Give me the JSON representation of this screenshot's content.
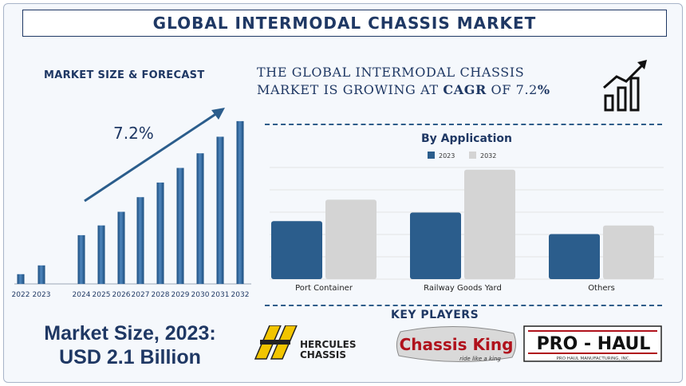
{
  "title": "GLOBAL INTERMODAL CHASSIS MARKET",
  "left_panel": {
    "subtitle": "MARKET SIZE & FORECAST",
    "market_size_line1": "Market Size, 2023:",
    "market_size_line2": "USD 2.1 Billion"
  },
  "headline": {
    "line1": "THE GLOBAL INTERMODAL CHASSIS",
    "line2_prefix": "MARKET IS GROWING AT ",
    "line2_bold": "CAGR",
    "line2_mid": " OF  7.2",
    "line2_suffix": "%"
  },
  "key_players": {
    "heading": "KEY PLAYERS",
    "hercules_line1": "HERCULES",
    "hercules_line2": "CHASSIS",
    "chassis_king": "Chassis King",
    "chassis_king_tag": "ride like a king",
    "prohaul": "PRO - HAUL",
    "prohaul_sub": "PRO HAUL MANUFACTURING, INC."
  },
  "colors": {
    "navy": "#1f3864",
    "bar_blue": "#2b5d8c",
    "bar_grey": "#d4d4d4"
  },
  "icons": [
    "growth-chart-icon",
    "trend-arrow-icon"
  ],
  "chart_data": [
    {
      "type": "bar",
      "categories": [
        "2022",
        "2023",
        "2024",
        "2025",
        "2026",
        "2027",
        "2028",
        "2029",
        "2030",
        "2031",
        "2032"
      ],
      "values": [
        1.0,
        1.9,
        5.0,
        6.0,
        7.4,
        8.9,
        10.4,
        11.9,
        13.4,
        15.1,
        16.7
      ],
      "annotation": "7.2%",
      "ylim": [
        0,
        18
      ],
      "grid": false,
      "legend": "none"
    },
    {
      "type": "bar",
      "title": "By Application",
      "categories": [
        "Port Container",
        "Railway Goods Yard",
        "Others"
      ],
      "series": [
        {
          "name": "2023",
          "values": [
            2.7,
            3.1,
            2.1
          ]
        },
        {
          "name": "2032",
          "values": [
            3.7,
            5.1,
            2.5
          ]
        }
      ],
      "ylim": [
        0,
        5.2
      ],
      "grid": true,
      "legend": "top"
    }
  ]
}
